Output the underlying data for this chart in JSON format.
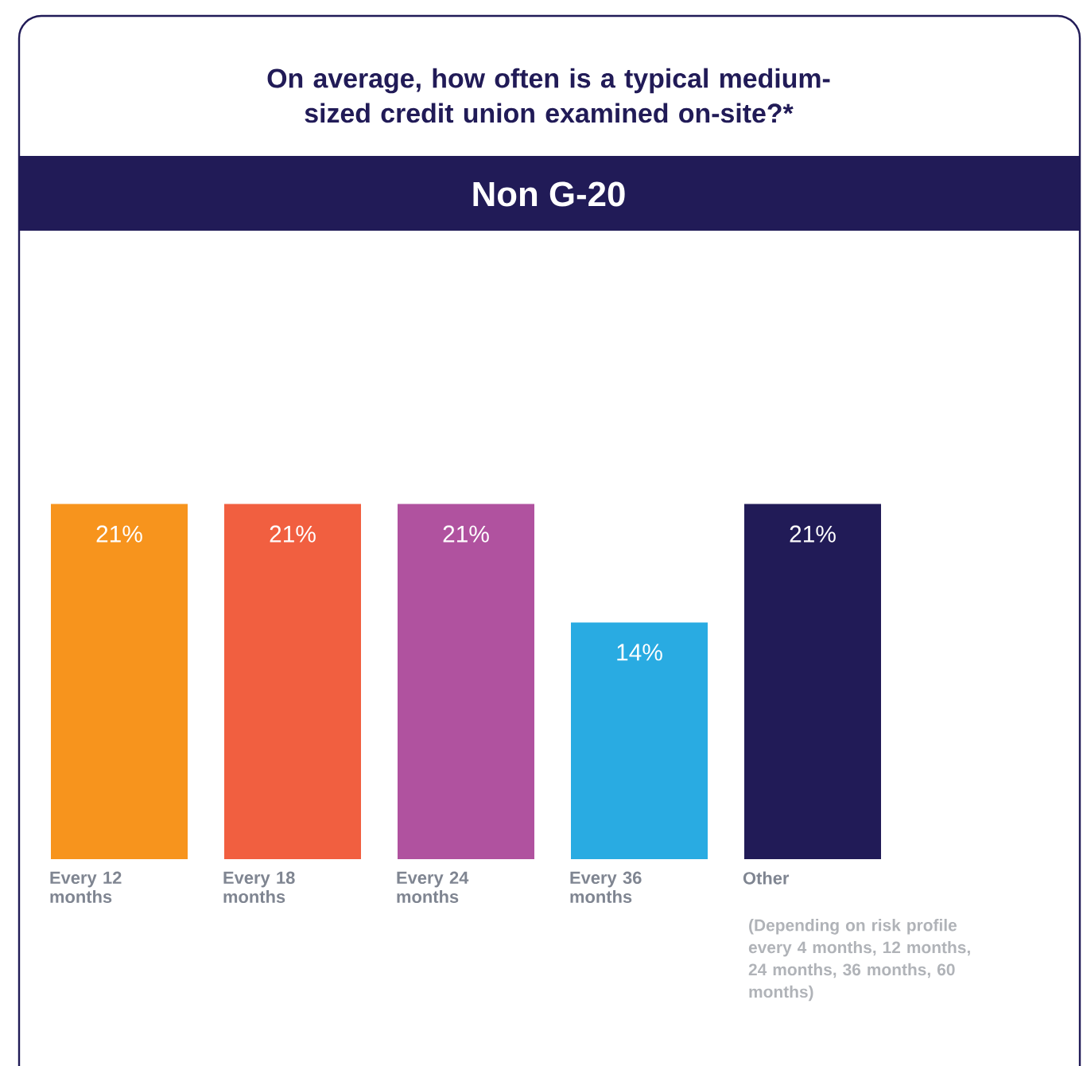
{
  "chart_data": {
    "type": "bar",
    "title": "On average, how often is a typical medium-sized credit union examined on-site?*",
    "subtitle": "Non G-20",
    "categories": [
      "Every 12 months",
      "Every 18 months",
      "Every 24 months",
      "Every 36 months",
      "Other"
    ],
    "values": [
      21,
      21,
      21,
      14,
      21
    ],
    "value_labels": [
      "21%",
      "21%",
      "21%",
      "14%",
      "21%"
    ],
    "colors": [
      "#f7941d",
      "#f15f40",
      "#b0529f",
      "#29abe2",
      "#211b57"
    ],
    "annotations": [
      "(Depending on risk profile every 4 months, 12 months, 24 months, 36 months, 60 months)"
    ]
  }
}
